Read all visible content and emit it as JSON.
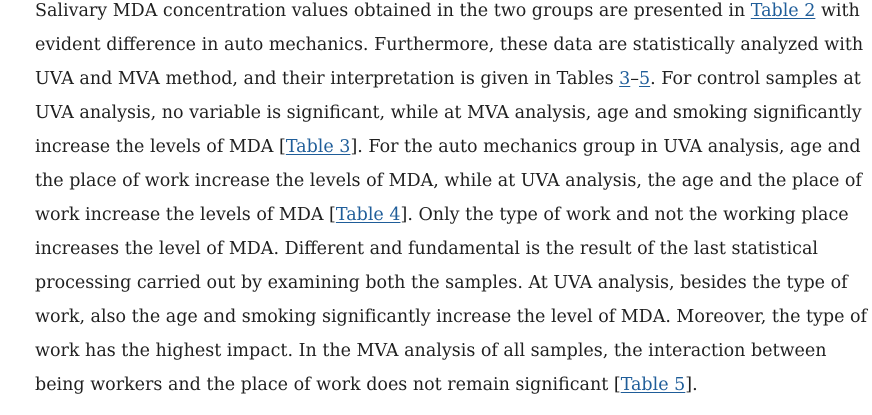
{
  "paragraph": {
    "lines": [
      [
        {
          "text": "Salivary MDA concentration values obtained in the two groups are presented in "
        },
        {
          "text": "Table 2",
          "link": true,
          "name": "table-2-link"
        },
        {
          "text": " with"
        }
      ],
      [
        {
          "text": "evident difference in auto mechanics. Furthermore, these data are statistically analyzed with"
        }
      ],
      [
        {
          "text": "UVA and MVA method, and their interpretation is given in Tables "
        },
        {
          "text": "3",
          "link": true,
          "name": "table-3-range-link"
        },
        {
          "text": "–"
        },
        {
          "text": "5",
          "link": true,
          "name": "table-5-range-link"
        },
        {
          "text": ". For control samples at"
        }
      ],
      [
        {
          "text": "UVA analysis, no variable is significant, while at MVA analysis, age and smoking significantly"
        }
      ],
      [
        {
          "text": "increase the levels of MDA ["
        },
        {
          "text": "Table 3",
          "link": true,
          "name": "table-3-link"
        },
        {
          "text": "]. For the auto mechanics group in UVA analysis, age and"
        }
      ],
      [
        {
          "text": "the place of work increase the levels of MDA, while at UVA analysis, the age and the place of"
        }
      ],
      [
        {
          "text": "work increase the levels of MDA ["
        },
        {
          "text": "Table 4",
          "link": true,
          "name": "table-4-link"
        },
        {
          "text": "]. Only the type of work and not the working place"
        }
      ],
      [
        {
          "text": "increases the level of MDA. Different and fundamental is the result of the last statistical"
        }
      ],
      [
        {
          "text": "processing carried out by examining both the samples. At UVA analysis, besides the type of"
        }
      ],
      [
        {
          "text": "work, also the age and smoking significantly increase the level of MDA. Moreover, the type of"
        }
      ],
      [
        {
          "text": "work has the highest impact. In the MVA analysis of all samples, the interaction between"
        }
      ],
      [
        {
          "text": "being workers and the place of work does not remain significant ["
        },
        {
          "text": "Table 5",
          "link": true,
          "name": "table-5-link"
        },
        {
          "text": "]."
        }
      ]
    ]
  }
}
